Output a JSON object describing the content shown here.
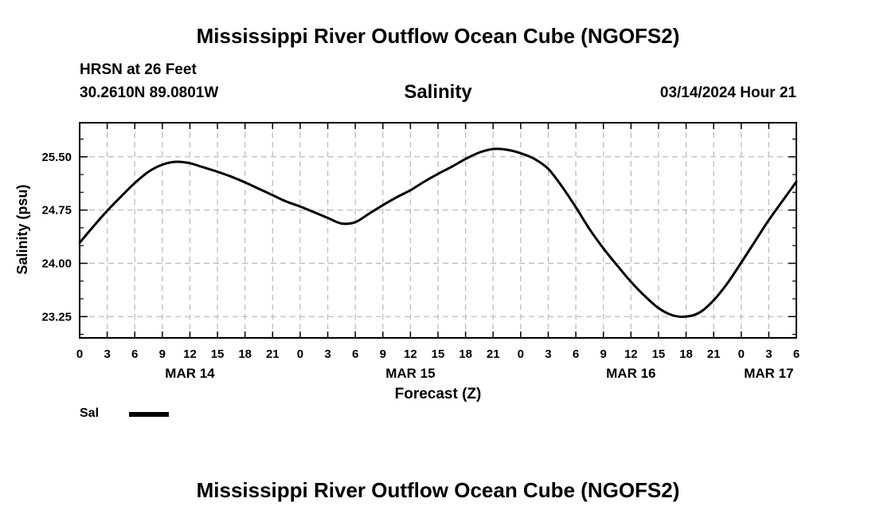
{
  "header": {
    "title": "Mississippi River Outflow Ocean Cube (NGOFS2)",
    "station": "HRSN at 26 Feet",
    "coords": "30.2610N  89.0801W",
    "timestamp": "03/14/2024 Hour 21"
  },
  "footer": {
    "title": "Mississippi River Outflow Ocean Cube (NGOFS2)"
  },
  "legend": {
    "label": "Sal",
    "color": "#000000"
  },
  "chart_data": {
    "type": "line",
    "title": "Salinity",
    "xlabel": "Forecast (Z)",
    "ylabel": "Salinity (psu)",
    "x_range_hours": [
      0,
      78
    ],
    "ylim": [
      22.95,
      25.98
    ],
    "yticks": [
      23.25,
      24.0,
      24.75,
      25.5
    ],
    "ytick_labels": [
      "23.25",
      "24.00",
      "24.75",
      "25.50"
    ],
    "x_tick_hours": [
      0,
      3,
      6,
      9,
      12,
      15,
      18,
      21,
      24,
      27,
      30,
      33,
      36,
      39,
      42,
      45,
      48,
      51,
      54,
      57,
      60,
      63,
      66,
      69,
      72,
      75,
      78
    ],
    "x_tick_labels": [
      "0",
      "3",
      "6",
      "9",
      "12",
      "15",
      "18",
      "21",
      "0",
      "3",
      "6",
      "9",
      "12",
      "15",
      "18",
      "21",
      "0",
      "3",
      "6",
      "9",
      "12",
      "15",
      "18",
      "21",
      "0",
      "3",
      "6"
    ],
    "day_labels": [
      {
        "hour": 12,
        "label": "MAR 14"
      },
      {
        "hour": 36,
        "label": "MAR 15"
      },
      {
        "hour": 60,
        "label": "MAR 16"
      },
      {
        "hour": 75,
        "label": "MAR 17"
      }
    ],
    "grid": true,
    "series": [
      {
        "name": "Sal",
        "color": "#000000",
        "x": [
          0,
          1.5,
          3,
          4.5,
          6,
          7.5,
          9,
          10.5,
          12,
          13.5,
          15,
          16.5,
          18,
          19.5,
          21,
          22.5,
          24,
          25.5,
          27,
          28.5,
          30,
          31.5,
          33,
          34.5,
          36,
          37.5,
          39,
          40.5,
          42,
          43.5,
          45,
          46.5,
          48,
          49.5,
          51,
          52.5,
          54,
          55.5,
          57,
          58.5,
          60,
          61.5,
          63,
          64.5,
          66,
          67.5,
          69,
          70.5,
          72,
          73.5,
          75,
          76.5,
          78
        ],
        "values": [
          24.29,
          24.52,
          24.74,
          24.94,
          25.13,
          25.29,
          25.39,
          25.43,
          25.41,
          25.35,
          25.29,
          25.22,
          25.14,
          25.05,
          24.96,
          24.87,
          24.8,
          24.72,
          24.64,
          24.56,
          24.58,
          24.7,
          24.82,
          24.93,
          25.03,
          25.15,
          25.26,
          25.36,
          25.47,
          25.56,
          25.61,
          25.6,
          25.55,
          25.47,
          25.33,
          25.08,
          24.79,
          24.48,
          24.21,
          23.97,
          23.74,
          23.54,
          23.37,
          23.27,
          23.25,
          23.31,
          23.48,
          23.72,
          24.01,
          24.31,
          24.61,
          24.88,
          25.15
        ]
      }
    ]
  }
}
